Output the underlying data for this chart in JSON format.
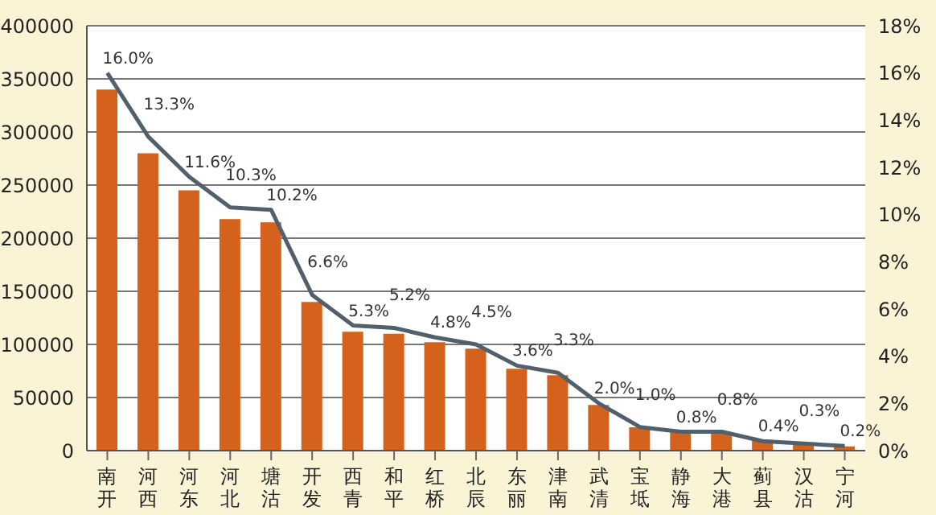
{
  "chart_data": {
    "type": "bar",
    "categories": [
      "南开",
      "河西",
      "河东",
      "河北",
      "塘沽",
      "开发",
      "西青",
      "和平",
      "红桥",
      "北辰",
      "东丽",
      "津南",
      "武清",
      "宝坻",
      "静海",
      "大港",
      "蓟县",
      "汉沽",
      "宁河"
    ],
    "series": [
      {
        "color": "#d4621c",
        "values": [
          340000,
          280000,
          245000,
          218000,
          215000,
          140000,
          112000,
          110000,
          102000,
          96000,
          77000,
          71000,
          43000,
          22000,
          18000,
          17000,
          10000,
          7000,
          4000
        ]
      },
      {
        "type": "line",
        "axis": "y2",
        "color": "#52606d",
        "values": [
          16.0,
          13.3,
          11.6,
          10.3,
          10.2,
          6.6,
          5.3,
          5.2,
          4.8,
          4.5,
          3.6,
          3.3,
          2.0,
          1.0,
          0.8,
          0.8,
          0.4,
          0.3,
          0.2
        ],
        "value_labels": [
          "16.0%",
          "13.3%",
          "11.6%",
          "10.3%",
          "10.2%",
          "6.6%",
          "5.3%",
          "5.2%",
          "4.8%",
          "4.5%",
          "3.6%",
          "3.3%",
          "2.0%",
          "1.0%",
          "0.8%",
          "0.8%",
          "0.4%",
          "0.3%",
          "0.2%"
        ]
      }
    ],
    "ylim": [
      0,
      400000
    ],
    "yticks": [
      0,
      50000,
      100000,
      150000,
      200000,
      250000,
      300000,
      350000,
      400000
    ],
    "y2lim": [
      0,
      18
    ],
    "y2ticks": [
      {
        "value": 0,
        "label": "0%"
      },
      {
        "value": 2,
        "label": "2%"
      },
      {
        "value": 4,
        "label": "4%"
      },
      {
        "value": 6,
        "label": "6%"
      },
      {
        "value": 8,
        "label": "8%"
      },
      {
        "value": 10,
        "label": "10%"
      },
      {
        "value": 12,
        "label": "12%"
      },
      {
        "value": 14,
        "label": "14%"
      },
      {
        "value": 16,
        "label": "16%"
      },
      {
        "value": 18,
        "label": "18%"
      }
    ],
    "grid": "y",
    "legend": false
  }
}
